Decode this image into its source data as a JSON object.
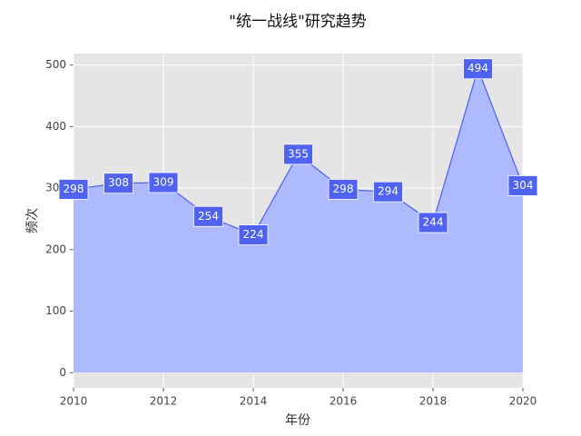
{
  "chart_data": {
    "type": "area",
    "title": "\"统一战线\"研究趋势",
    "xlabel": "年份",
    "ylabel": "频次",
    "x": [
      2010,
      2011,
      2012,
      2013,
      2014,
      2015,
      2016,
      2017,
      2018,
      2019,
      2020
    ],
    "series": [
      {
        "name": "频次",
        "color": "#5060ee",
        "fill": "#adbaff",
        "values": [
          298,
          308,
          309,
          254,
          224,
          355,
          298,
          294,
          244,
          494,
          304
        ]
      }
    ],
    "label_color": "#4f63f0",
    "xlim": [
      2010,
      2020
    ],
    "xticks": [
      2010,
      2012,
      2014,
      2016,
      2018,
      2020
    ],
    "ylim": [
      -24.7,
      518.7
    ],
    "yticks": [
      0,
      100,
      200,
      300,
      400,
      500
    ],
    "grid": true,
    "background": "#e5e5e5"
  }
}
